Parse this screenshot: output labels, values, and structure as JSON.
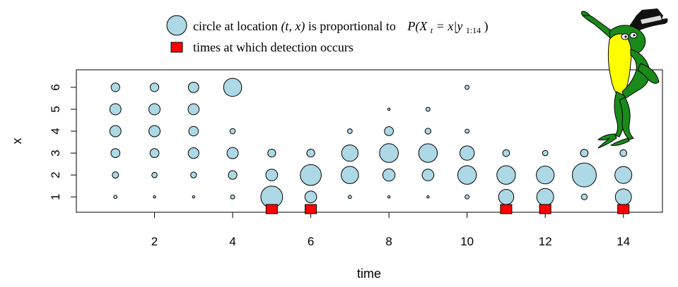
{
  "legend": {
    "circle_text": "circle at location",
    "circle_math_loc": "(t, x)",
    "circle_mid": "is proportional to",
    "circle_math_prob": "P(X",
    "circle_math_sub_t": "t",
    "circle_math_eq": "= x|y",
    "circle_math_sub_range": "1:14",
    "circle_math_close": ")",
    "square_text": "times at which detection occurs"
  },
  "colors": {
    "bubble_fill": "#ADD8E6",
    "bubble_stroke": "#000000",
    "detection_fill": "#FF0000",
    "frog_green": "#1a8a1a",
    "frog_yellow": "#ffff00",
    "hat": "#111111"
  },
  "chart_data": {
    "type": "scatter",
    "xlabel": "time",
    "ylabel": "x",
    "xlim": [
      0,
      15
    ],
    "ylim": [
      0.3,
      6.8
    ],
    "xticks": [
      2,
      4,
      6,
      8,
      10,
      12,
      14
    ],
    "yticks": [
      1,
      2,
      3,
      4,
      5,
      6
    ],
    "xtick_labels": [
      "2",
      "4",
      "6",
      "8",
      "10",
      "12",
      "14"
    ],
    "ytick_labels": [
      "1",
      "2",
      "3",
      "4",
      "5",
      "6"
    ],
    "grid": false,
    "detection_times": [
      5,
      6,
      11,
      12,
      14
    ],
    "probabilities": [
      {
        "t": 1,
        "p": [
          0.02,
          0.07,
          0.14,
          0.22,
          0.22,
          0.13
        ]
      },
      {
        "t": 2,
        "p": [
          0.01,
          0.05,
          0.14,
          0.22,
          0.22,
          0.13
        ]
      },
      {
        "t": 3,
        "p": [
          0.01,
          0.06,
          0.2,
          0.16,
          0.21,
          0.19
        ]
      },
      {
        "t": 4,
        "p": [
          0.03,
          0.13,
          0.22,
          0.05,
          0.0,
          0.57
        ]
      },
      {
        "t": 5,
        "p": [
          0.82,
          0.24,
          0.11,
          0.0,
          0.0,
          0.0
        ]
      },
      {
        "t": 6,
        "p": [
          0.24,
          0.76,
          0.11,
          0.0,
          0.0,
          0.0
        ]
      },
      {
        "t": 7,
        "p": [
          0.02,
          0.52,
          0.47,
          0.04,
          0.0,
          0.0
        ]
      },
      {
        "t": 8,
        "p": [
          0.01,
          0.26,
          0.61,
          0.14,
          0.01,
          0.0
        ]
      },
      {
        "t": 9,
        "p": [
          0.01,
          0.24,
          0.6,
          0.06,
          0.03,
          0.0
        ]
      },
      {
        "t": 10,
        "p": [
          0.03,
          0.6,
          0.36,
          0.03,
          0.0,
          0.03
        ]
      },
      {
        "t": 11,
        "p": [
          0.4,
          0.6,
          0.08,
          0.0,
          0.0,
          0.0
        ]
      },
      {
        "t": 12,
        "p": [
          0.5,
          0.55,
          0.05,
          0.0,
          0.0,
          0.0
        ]
      },
      {
        "t": 13,
        "p": [
          0.06,
          1.0,
          0.1,
          0.0,
          0.0,
          0.0
        ]
      },
      {
        "t": 14,
        "p": [
          0.45,
          0.5,
          0.08,
          0.0,
          0.0,
          0.0
        ]
      }
    ]
  }
}
